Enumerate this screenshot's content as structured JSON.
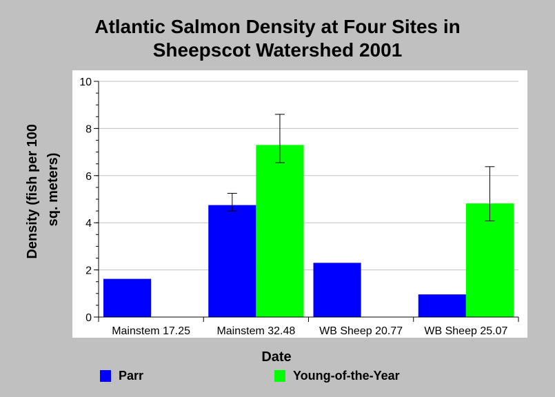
{
  "chart_data": {
    "type": "bar",
    "title_lines": [
      "Atlantic Salmon Density at Four Sites in",
      "Sheepscot Watershed 2001"
    ],
    "xlabel": "Date",
    "ylabel_lines": [
      "Density (fish per 100",
      "sq. meters)"
    ],
    "categories": [
      "Mainstem 17.25",
      "Mainstem 32.48",
      "WB Sheep 20.77",
      "WB Sheep 25.07"
    ],
    "ylim": [
      0,
      10
    ],
    "yticks": [
      "0",
      "2",
      "4",
      "6",
      "8",
      "10"
    ],
    "grid": true,
    "legend_position": "bottom",
    "series": [
      {
        "name": "Parr",
        "color": "#0000ff",
        "values": [
          1.62,
          4.75,
          2.3,
          0.96
        ],
        "err_low": [
          null,
          4.5,
          null,
          null
        ],
        "err_high": [
          null,
          5.25,
          null,
          null
        ]
      },
      {
        "name": "Young-of-the-Year",
        "color": "#00ff00",
        "values": [
          null,
          7.3,
          null,
          4.82
        ],
        "err_low": [
          null,
          6.55,
          null,
          4.08
        ],
        "err_high": [
          null,
          8.6,
          null,
          6.38
        ]
      }
    ]
  }
}
